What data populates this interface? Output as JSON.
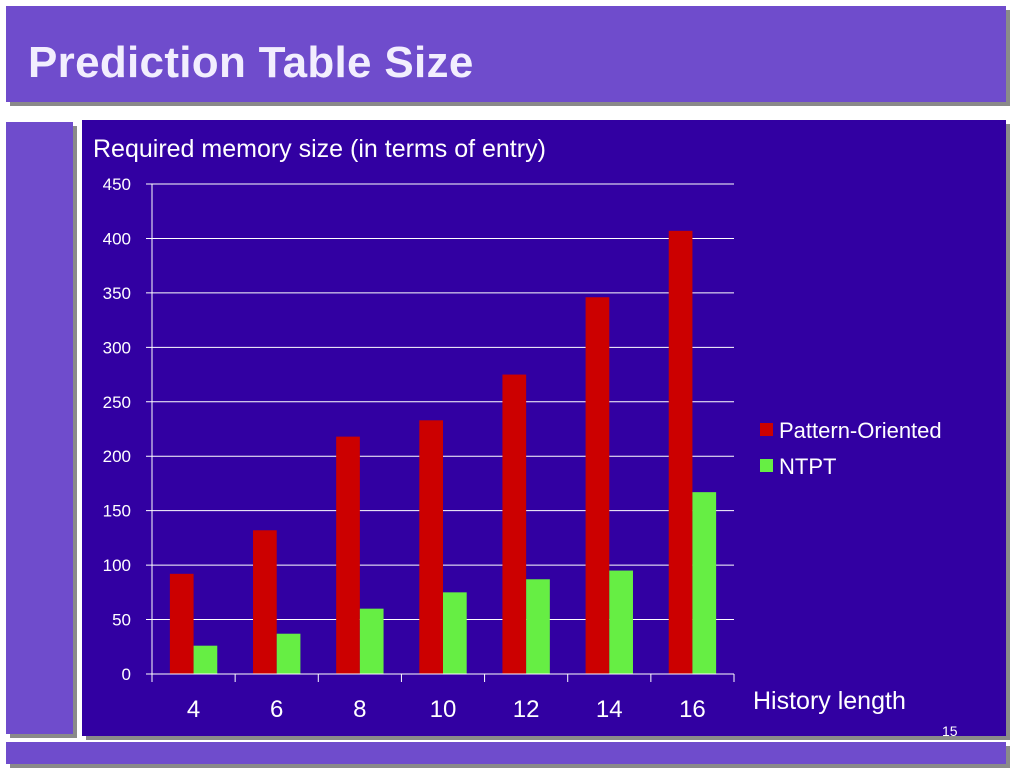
{
  "slide": {
    "title": "Prediction Table Size",
    "page_number": "15"
  },
  "colors": {
    "title_background": "#6f4ccc",
    "panel_background": "#3200a2",
    "pattern_oriented": "#cc0000",
    "ntpt": "#66ee44"
  },
  "chart_data": {
    "type": "bar",
    "title": "Required memory size (in terms of entry)",
    "xlabel": "History length",
    "ylabel": "",
    "categories": [
      "4",
      "6",
      "8",
      "10",
      "12",
      "14",
      "16"
    ],
    "series": [
      {
        "name": "Pattern-Oriented",
        "color": "#cc0000",
        "values": [
          92,
          132,
          218,
          233,
          275,
          346,
          407
        ]
      },
      {
        "name": "NTPT",
        "color": "#66ee44",
        "values": [
          26,
          37,
          60,
          75,
          87,
          95,
          167
        ]
      }
    ],
    "ylim": [
      0,
      450
    ],
    "yticks": [
      0,
      50,
      100,
      150,
      200,
      250,
      300,
      350,
      400,
      450
    ],
    "grid": true,
    "legend_position": "right"
  }
}
